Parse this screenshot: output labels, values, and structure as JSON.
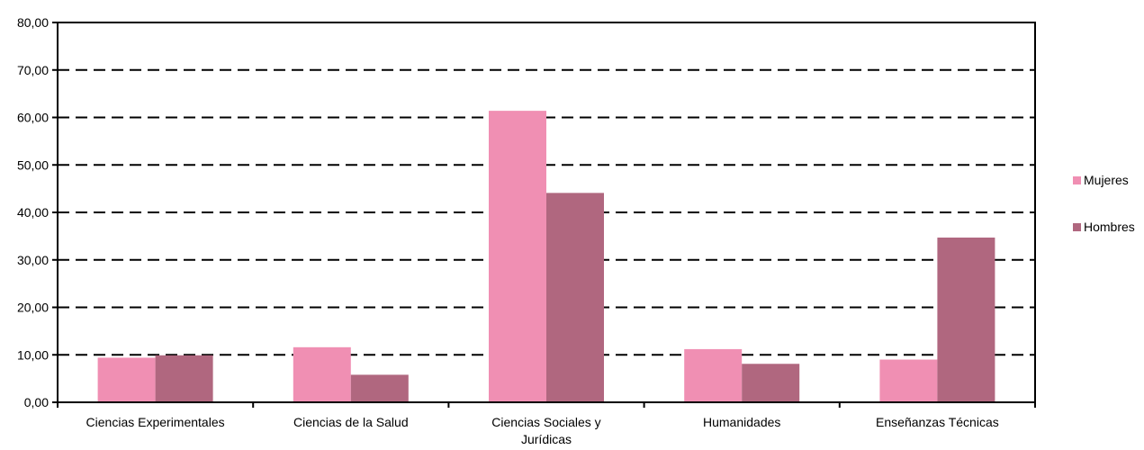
{
  "chart_data": {
    "type": "bar",
    "categories": [
      "Ciencias Experimentales",
      "Ciencias de la Salud",
      "Ciencias Sociales y Jurídicas",
      "Humanidades",
      "Enseñanzas Técnicas"
    ],
    "category_lines": [
      [
        "Ciencias Experimentales"
      ],
      [
        "Ciencias de la Salud"
      ],
      [
        "Ciencias Sociales y",
        "Jurídicas"
      ],
      [
        "Humanidades"
      ],
      [
        "Enseñanzas Técnicas"
      ]
    ],
    "series": [
      {
        "name": "Mujeres",
        "color": "#f08fb3",
        "values": [
          9.4,
          11.6,
          61.4,
          11.2,
          9.0
        ]
      },
      {
        "name": "Hombres",
        "color": "#b0677f",
        "values": [
          9.9,
          5.8,
          44.1,
          8.1,
          34.7
        ]
      }
    ],
    "yticks": [
      "0,00",
      "10,00",
      "20,00",
      "30,00",
      "40,00",
      "50,00",
      "60,00",
      "70,00",
      "80,00"
    ],
    "ylim": [
      0,
      80
    ],
    "grid": "dashed horizontal",
    "legend_position": "right",
    "title": "",
    "xlabel": "",
    "ylabel": ""
  }
}
